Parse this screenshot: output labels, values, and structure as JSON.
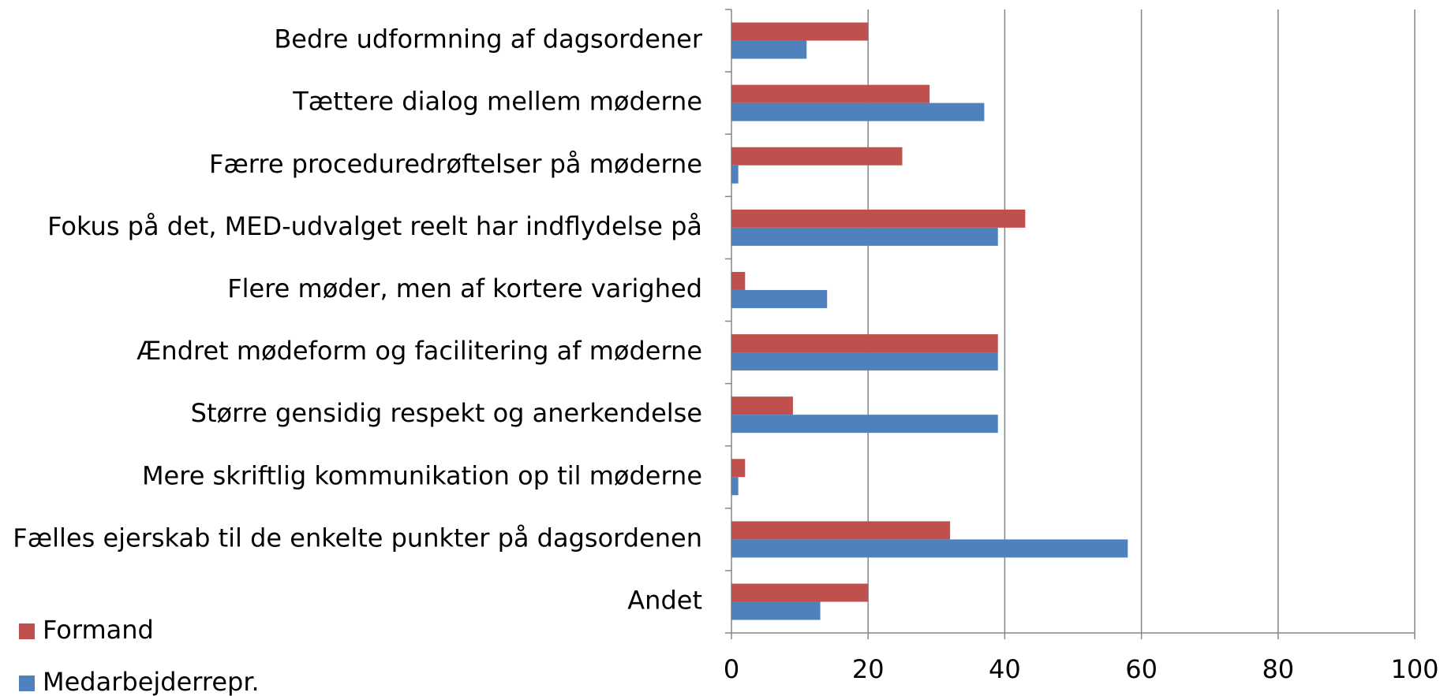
{
  "chart_data": {
    "type": "bar",
    "orientation": "horizontal",
    "categories": [
      "Bedre udformning af dagsordener",
      "Tættere dialog mellem møderne",
      "Færre proceduredrøftelser på møderne",
      "Fokus på det, MED-udvalget reelt har indflydelse på",
      "Flere møder, men af kortere varighed",
      "Ændret mødeform og facilitering af møderne",
      "Større gensidig respekt og anerkendelse",
      "Mere skriftlig kommunikation op til møderne",
      "Fælles ejerskab til de enkelte punkter på dagsordenen",
      "Andet"
    ],
    "series": [
      {
        "name": "Formand",
        "color": "#c0504d",
        "values": [
          20,
          29,
          25,
          43,
          2,
          39,
          9,
          2,
          32,
          20
        ]
      },
      {
        "name": "Medarbejderrepr.",
        "color": "#4f81bd",
        "values": [
          11,
          37,
          1,
          39,
          14,
          39,
          39,
          1,
          58,
          13
        ]
      }
    ],
    "xlim": [
      0,
      100
    ],
    "xticks": [
      0,
      20,
      40,
      60,
      80,
      100
    ],
    "grid": true,
    "legend": "bottom-left"
  }
}
